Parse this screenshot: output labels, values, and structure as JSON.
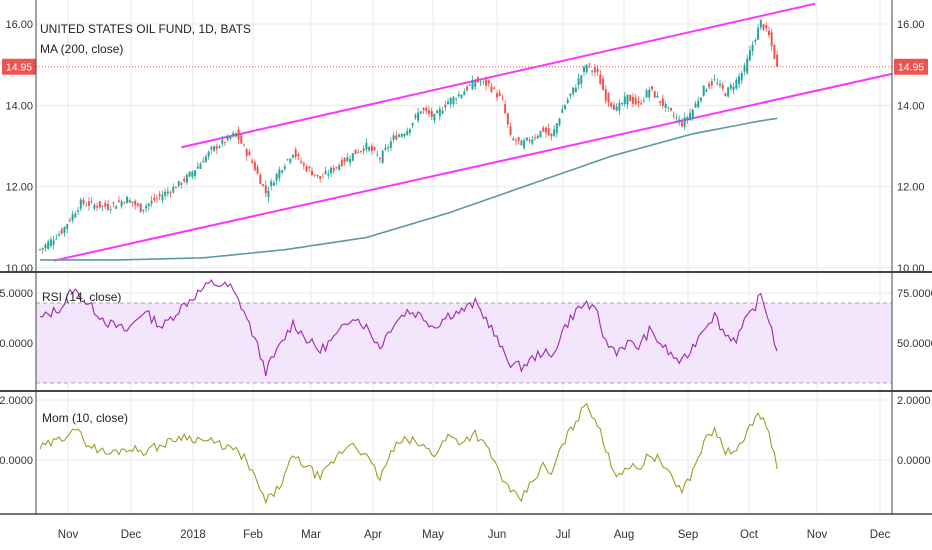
{
  "chart_data": [
    {
      "type": "candlestick",
      "title": "UNITED STATES OIL FUND, 1D, BATS",
      "indicator_label": "MA (200, close)",
      "last_price_label": "14.95",
      "last_price": 14.95,
      "ylim": [
        10.0,
        16.4
      ],
      "y_ticks": [
        "16.00",
        "14.00",
        "12.00",
        "10.00"
      ],
      "y_tick_values": [
        16,
        14,
        12,
        10
      ],
      "x_ticks": [
        "Nov",
        "Dec",
        "2018",
        "Feb",
        "Mar",
        "Apr",
        "May",
        "Jun",
        "Jul",
        "Aug",
        "Sep",
        "Oct",
        "Nov",
        "Dec"
      ],
      "close_anchors": [
        [
          0,
          10.45
        ],
        [
          8,
          10.9
        ],
        [
          15,
          11.6
        ],
        [
          25,
          11.5
        ],
        [
          32,
          11.7
        ],
        [
          37,
          11.45
        ],
        [
          45,
          11.8
        ],
        [
          52,
          12.1
        ],
        [
          58,
          12.5
        ],
        [
          63,
          12.9
        ],
        [
          72,
          13.3
        ],
        [
          78,
          12.6
        ],
        [
          83,
          11.85
        ],
        [
          88,
          12.4
        ],
        [
          93,
          12.85
        ],
        [
          97,
          12.5
        ],
        [
          103,
          12.2
        ],
        [
          110,
          12.55
        ],
        [
          115,
          12.8
        ],
        [
          120,
          13.0
        ],
        [
          125,
          12.7
        ],
        [
          130,
          13.2
        ],
        [
          135,
          13.4
        ],
        [
          140,
          13.9
        ],
        [
          145,
          13.7
        ],
        [
          150,
          14.1
        ],
        [
          155,
          14.3
        ],
        [
          160,
          14.6
        ],
        [
          165,
          14.5
        ],
        [
          170,
          14.1
        ],
        [
          173,
          13.2
        ],
        [
          177,
          13.05
        ],
        [
          181,
          13.2
        ],
        [
          185,
          13.4
        ],
        [
          188,
          13.2
        ],
        [
          192,
          13.9
        ],
        [
          197,
          14.5
        ],
        [
          201,
          15.0
        ],
        [
          205,
          14.75
        ],
        [
          208,
          14.2
        ],
        [
          212,
          13.9
        ],
        [
          216,
          14.2
        ],
        [
          220,
          14.0
        ],
        [
          224,
          14.4
        ],
        [
          228,
          14.1
        ],
        [
          232,
          13.8
        ],
        [
          236,
          13.55
        ],
        [
          240,
          13.9
        ],
        [
          244,
          14.4
        ],
        [
          248,
          14.6
        ],
        [
          252,
          14.3
        ],
        [
          256,
          14.6
        ],
        [
          259,
          14.9
        ],
        [
          262,
          15.5
        ],
        [
          265,
          16.05
        ],
        [
          268,
          15.7
        ],
        [
          271,
          14.95
        ]
      ],
      "ma_anchors": [
        [
          0,
          10.2
        ],
        [
          30,
          10.2
        ],
        [
          60,
          10.25
        ],
        [
          90,
          10.45
        ],
        [
          120,
          10.75
        ],
        [
          150,
          11.35
        ],
        [
          180,
          12.05
        ],
        [
          210,
          12.75
        ],
        [
          240,
          13.3
        ],
        [
          265,
          13.62
        ],
        [
          271,
          13.68
        ]
      ],
      "channel_upper": [
        [
          52,
          12.97
        ],
        [
          285,
          16.5
        ]
      ],
      "channel_lower": [
        [
          5,
          10.18
        ],
        [
          315,
          14.8
        ]
      ],
      "colors": {
        "up": "#26a69a",
        "down": "#ef5350",
        "ma": "#5b9aa0",
        "channel": "#ff33ff",
        "price_line": "#ef5350"
      }
    },
    {
      "type": "line",
      "title": "RSI (14, close)",
      "ylim": [
        26,
        82
      ],
      "y_ticks": [
        "75.0000",
        "50.0000"
      ],
      "y_tick_values": [
        75,
        50
      ],
      "band": [
        30,
        70
      ],
      "values_anchors": [
        [
          0,
          62
        ],
        [
          8,
          68
        ],
        [
          12,
          77
        ],
        [
          18,
          69
        ],
        [
          25,
          60
        ],
        [
          32,
          56
        ],
        [
          38,
          66
        ],
        [
          45,
          58
        ],
        [
          52,
          68
        ],
        [
          58,
          75
        ],
        [
          63,
          80
        ],
        [
          70,
          78
        ],
        [
          75,
          66
        ],
        [
          80,
          48
        ],
        [
          83,
          36
        ],
        [
          88,
          48
        ],
        [
          93,
          60
        ],
        [
          98,
          52
        ],
        [
          103,
          46
        ],
        [
          110,
          55
        ],
        [
          115,
          64
        ],
        [
          120,
          58
        ],
        [
          125,
          48
        ],
        [
          130,
          60
        ],
        [
          135,
          66
        ],
        [
          140,
          64
        ],
        [
          145,
          58
        ],
        [
          150,
          64
        ],
        [
          155,
          66
        ],
        [
          160,
          70
        ],
        [
          165,
          60
        ],
        [
          170,
          46
        ],
        [
          173,
          40
        ],
        [
          177,
          38
        ],
        [
          181,
          42
        ],
        [
          185,
          46
        ],
        [
          188,
          42
        ],
        [
          192,
          56
        ],
        [
          197,
          66
        ],
        [
          201,
          70
        ],
        [
          205,
          64
        ],
        [
          208,
          50
        ],
        [
          212,
          46
        ],
        [
          216,
          50
        ],
        [
          220,
          48
        ],
        [
          224,
          56
        ],
        [
          228,
          50
        ],
        [
          232,
          44
        ],
        [
          236,
          40
        ],
        [
          240,
          48
        ],
        [
          244,
          58
        ],
        [
          248,
          64
        ],
        [
          252,
          54
        ],
        [
          256,
          52
        ],
        [
          259,
          60
        ],
        [
          262,
          66
        ],
        [
          265,
          74
        ],
        [
          268,
          62
        ],
        [
          271,
          46
        ]
      ],
      "color": "#9c27b0",
      "band_color": "#f3e5fb"
    },
    {
      "type": "line",
      "title": "Mom (10, close)",
      "ylim": [
        -1.8,
        2.3
      ],
      "y_ticks": [
        "2.0000",
        "0.0000"
      ],
      "y_tick_values": [
        2,
        0
      ],
      "values_anchors": [
        [
          0,
          0.4
        ],
        [
          8,
          0.7
        ],
        [
          12,
          1.1
        ],
        [
          18,
          0.5
        ],
        [
          25,
          0.2
        ],
        [
          32,
          0.4
        ],
        [
          38,
          0.3
        ],
        [
          45,
          0.5
        ],
        [
          52,
          0.8
        ],
        [
          58,
          0.7
        ],
        [
          63,
          0.6
        ],
        [
          70,
          0.4
        ],
        [
          75,
          0.1
        ],
        [
          80,
          -0.8
        ],
        [
          83,
          -1.4
        ],
        [
          88,
          -0.9
        ],
        [
          93,
          0.1
        ],
        [
          98,
          -0.2
        ],
        [
          103,
          -0.6
        ],
        [
          110,
          0.2
        ],
        [
          115,
          0.6
        ],
        [
          120,
          0.1
        ],
        [
          125,
          -0.6
        ],
        [
          130,
          0.4
        ],
        [
          135,
          0.7
        ],
        [
          140,
          0.5
        ],
        [
          145,
          0.2
        ],
        [
          150,
          0.8
        ],
        [
          155,
          0.6
        ],
        [
          160,
          0.9
        ],
        [
          165,
          0.3
        ],
        [
          170,
          -0.6
        ],
        [
          173,
          -1.1
        ],
        [
          177,
          -1.3
        ],
        [
          181,
          -0.7
        ],
        [
          185,
          -0.2
        ],
        [
          188,
          -0.5
        ],
        [
          192,
          0.5
        ],
        [
          197,
          1.3
        ],
        [
          201,
          1.9
        ],
        [
          205,
          1.2
        ],
        [
          208,
          0.3
        ],
        [
          212,
          -0.5
        ],
        [
          216,
          -0.2
        ],
        [
          220,
          -0.3
        ],
        [
          224,
          0.2
        ],
        [
          228,
          0.0
        ],
        [
          232,
          -0.6
        ],
        [
          236,
          -1.0
        ],
        [
          240,
          -0.4
        ],
        [
          244,
          0.6
        ],
        [
          248,
          1.0
        ],
        [
          252,
          0.3
        ],
        [
          256,
          0.2
        ],
        [
          259,
          0.8
        ],
        [
          262,
          1.3
        ],
        [
          265,
          1.5
        ],
        [
          268,
          0.9
        ],
        [
          271,
          -0.3
        ]
      ],
      "color": "#9e9d24"
    }
  ]
}
